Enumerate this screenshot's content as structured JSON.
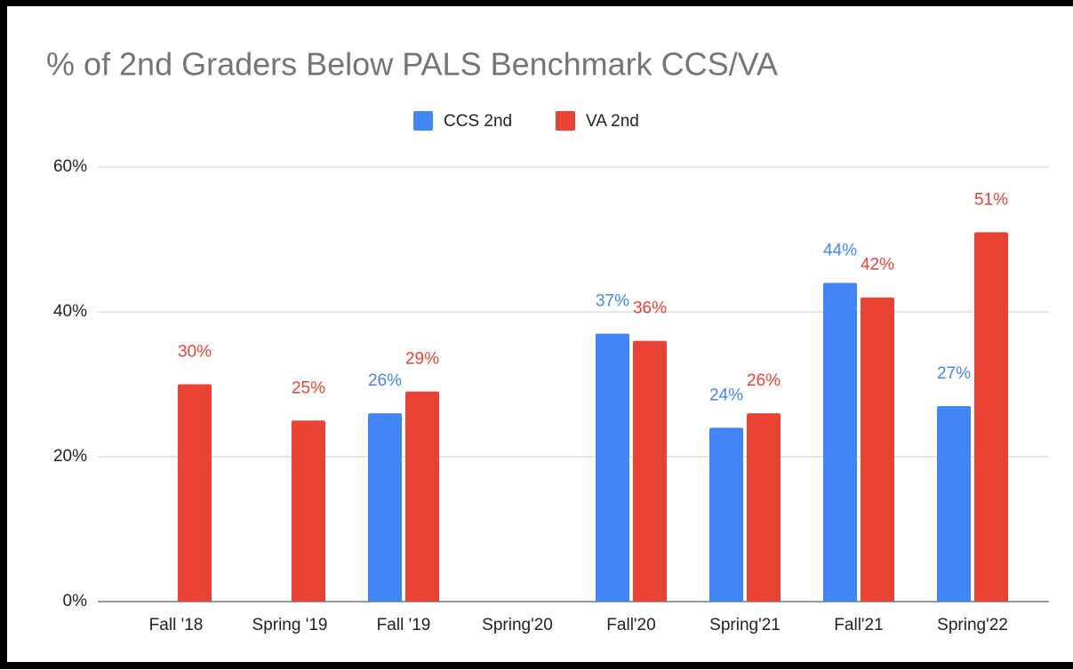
{
  "chart_data": {
    "type": "bar",
    "title": "% of 2nd Graders Below PALS Benchmark CCS/VA",
    "categories": [
      "Fall '18",
      "Spring '19",
      "Fall '19",
      "Spring'20",
      "Fall'20",
      "Spring'21",
      "Fall'21",
      "Spring'22"
    ],
    "series": [
      {
        "name": "CCS 2nd",
        "color": "#4285f4",
        "values": [
          null,
          null,
          26,
          null,
          37,
          24,
          44,
          27
        ],
        "value_labels": [
          null,
          null,
          "26%",
          null,
          "37%",
          "24%",
          "44%",
          "27%"
        ]
      },
      {
        "name": "VA 2nd",
        "color": "#ea4335",
        "values": [
          30,
          25,
          29,
          null,
          36,
          26,
          42,
          51
        ],
        "value_labels": [
          "30%",
          "25%",
          "29%",
          null,
          "36%",
          "26%",
          "42%",
          "51%"
        ]
      }
    ],
    "ylim": [
      0,
      60
    ],
    "yticks": [
      {
        "value": 0,
        "label": "0%"
      },
      {
        "value": 20,
        "label": "20%"
      },
      {
        "value": 40,
        "label": "40%"
      },
      {
        "value": 60,
        "label": "60%"
      }
    ],
    "grid": true,
    "legend": "top"
  }
}
